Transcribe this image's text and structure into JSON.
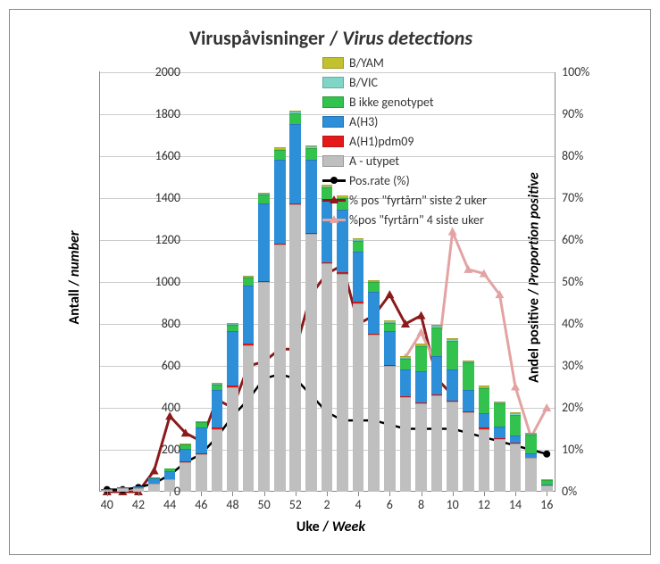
{
  "title_plain": "Viruspåvisninger / ",
  "title_italic": "Virus detections",
  "axis_left_plain": "Antall / ",
  "axis_left_italic": "number",
  "axis_right_plain": "Andel positive / ",
  "axis_right_italic": "Proportion positive",
  "axis_bottom_plain": "Uke / ",
  "axis_bottom_italic": "Week",
  "y_left_max": 2000,
  "y_left_ticks": [
    0,
    200,
    400,
    600,
    800,
    1000,
    1200,
    1400,
    1600,
    1800,
    2000
  ],
  "y_right_max": 100,
  "y_right_ticks": [
    "0%",
    "10%",
    "20%",
    "30%",
    "40%",
    "50%",
    "60%",
    "70%",
    "80%",
    "90%",
    "100%"
  ],
  "colors": {
    "a_utypet": "#bfbfbf",
    "ah1_pdm09": "#e61919",
    "ah3": "#2e8fd9",
    "b_ikke": "#33c24d",
    "b_vic": "#7fd6c7",
    "b_yam": "#c2c22e",
    "grid": "#cccccc",
    "pos_rate": "#000000",
    "fyrtarn2": "#8b1a1a",
    "fyrtarn4": "#e3a3a3"
  },
  "legend": [
    {
      "type": "swatch",
      "color": "b_yam",
      "label": "B/YAM"
    },
    {
      "type": "swatch",
      "color": "b_vic",
      "label": "B/VIC"
    },
    {
      "type": "swatch",
      "color": "b_ikke",
      "label": "B ikke genotypet"
    },
    {
      "type": "swatch",
      "color": "ah3",
      "label": "A(H3)"
    },
    {
      "type": "swatch",
      "color": "ah1_pdm09",
      "label": "A(H1)pdm09"
    },
    {
      "type": "swatch",
      "color": "a_utypet",
      "label": "A - utypet"
    },
    {
      "type": "line",
      "marker": "circle",
      "color": "pos_rate",
      "label": "Pos.rate (%)"
    },
    {
      "type": "line",
      "marker": "tri",
      "color": "fyrtarn2",
      "label": "% pos \"fyrtårn\" siste 2 uker"
    },
    {
      "type": "line",
      "marker": "tri",
      "color": "fyrtarn4",
      "label": "%pos \"fyrtårn\" 4 siste uker"
    }
  ],
  "weeks": [
    "40",
    "41",
    "42",
    "43",
    "44",
    "45",
    "46",
    "47",
    "48",
    "49",
    "50",
    "51",
    "52",
    "1",
    "2",
    "3",
    "4",
    "5",
    "6",
    "7",
    "8",
    "9",
    "10",
    "11",
    "12",
    "13",
    "14",
    "15",
    "16"
  ],
  "x_tick_labels": [
    "40",
    "42",
    "44",
    "46",
    "48",
    "50",
    "52",
    "2",
    "4",
    "6",
    "8",
    "10",
    "12",
    "14",
    "16"
  ],
  "stacked": {
    "a_utypet": [
      10,
      15,
      18,
      40,
      60,
      140,
      180,
      300,
      500,
      700,
      1000,
      1180,
      1370,
      1230,
      1090,
      1040,
      900,
      750,
      600,
      450,
      420,
      460,
      430,
      380,
      300,
      250,
      230,
      160,
      30
    ],
    "ah1_pdm09": [
      0,
      0,
      0,
      0,
      0,
      5,
      5,
      5,
      5,
      5,
      5,
      5,
      5,
      5,
      5,
      5,
      5,
      5,
      5,
      5,
      5,
      5,
      5,
      5,
      5,
      5,
      3,
      3,
      0
    ],
    "ah3": [
      3,
      5,
      8,
      25,
      40,
      60,
      120,
      180,
      260,
      280,
      370,
      400,
      380,
      350,
      300,
      300,
      240,
      200,
      160,
      130,
      150,
      180,
      150,
      100,
      70,
      55,
      35,
      18,
      5
    ],
    "b_ikke": [
      0,
      0,
      0,
      5,
      10,
      20,
      25,
      25,
      30,
      35,
      40,
      45,
      50,
      55,
      55,
      55,
      50,
      45,
      40,
      50,
      120,
      140,
      135,
      130,
      120,
      110,
      100,
      90,
      20
    ],
    "b_vic": [
      0,
      0,
      0,
      0,
      0,
      2,
      3,
      3,
      4,
      5,
      5,
      6,
      6,
      6,
      6,
      6,
      6,
      5,
      5,
      5,
      5,
      6,
      6,
      6,
      5,
      5,
      5,
      5,
      2
    ],
    "b_yam": [
      0,
      0,
      0,
      0,
      0,
      2,
      3,
      3,
      4,
      5,
      5,
      6,
      6,
      6,
      6,
      6,
      6,
      5,
      5,
      5,
      5,
      6,
      6,
      6,
      5,
      5,
      5,
      5,
      2
    ]
  },
  "pos_rate": [
    0.5,
    0.5,
    1,
    2,
    4,
    7,
    9,
    13,
    18,
    22,
    27,
    28,
    27,
    23,
    19,
    17,
    17,
    17,
    16,
    15,
    15,
    15,
    15,
    14,
    13,
    12,
    11,
    10,
    9
  ],
  "fyrtarn2": [
    0,
    0,
    0,
    5,
    18,
    14,
    12,
    22,
    20,
    30,
    31,
    34,
    34,
    47,
    52,
    54,
    40,
    42,
    47,
    40,
    42,
    27,
    23,
    null,
    null,
    null,
    null,
    null,
    null
  ],
  "fyrtarn4": [
    null,
    null,
    null,
    null,
    null,
    null,
    null,
    null,
    null,
    null,
    null,
    null,
    null,
    null,
    null,
    null,
    null,
    null,
    null,
    32,
    38,
    30,
    62,
    53,
    52,
    47,
    25,
    13,
    20
  ]
}
